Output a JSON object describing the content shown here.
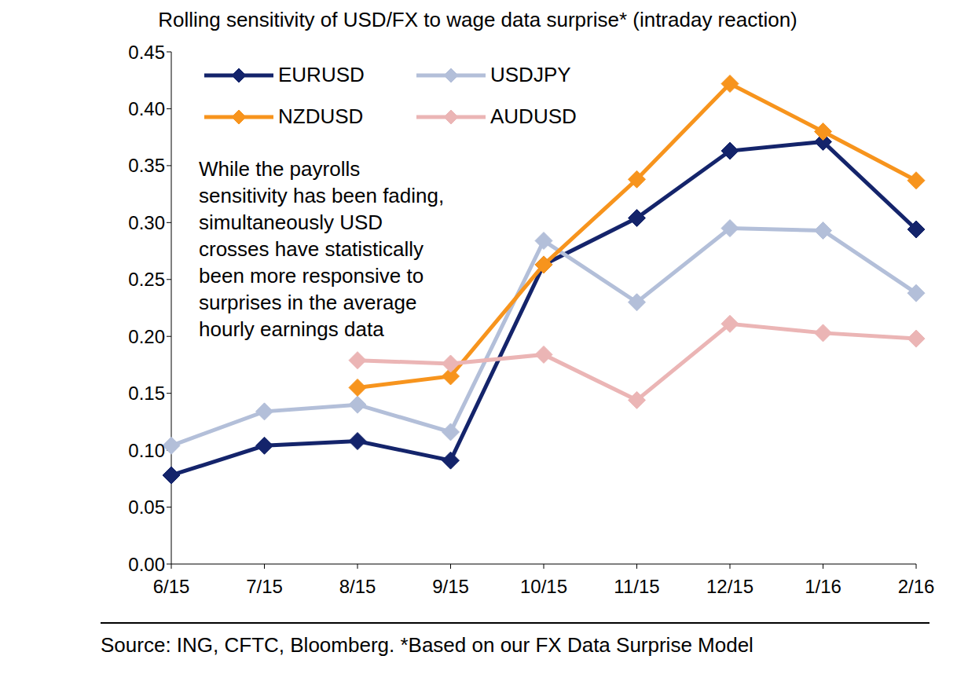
{
  "chart_data": {
    "type": "line",
    "title": "Rolling sensitivity of USD/FX to wage data surprise* (intraday reaction)",
    "annotation": [
      "While the payrolls",
      "sensitivity has been fading,",
      "simultaneously USD",
      "crosses have statistically",
      "been more responsive to",
      "surprises in the average",
      "hourly earnings data"
    ],
    "source": "Source: ING, CFTC, Bloomberg. *Based on our FX Data Surprise Model",
    "categories": [
      "6/15",
      "7/15",
      "8/15",
      "9/15",
      "10/15",
      "11/15",
      "12/15",
      "1/16",
      "2/16"
    ],
    "series": [
      {
        "name": "EURUSD",
        "color": "#14246b",
        "marker": "diamond",
        "values": [
          0.078,
          0.104,
          0.108,
          0.091,
          0.263,
          0.304,
          0.363,
          0.371,
          0.294
        ]
      },
      {
        "name": "USDJPY",
        "color": "#b3bfd9",
        "marker": "diamond",
        "values": [
          0.104,
          0.134,
          0.14,
          0.116,
          0.284,
          0.23,
          0.295,
          0.293,
          0.238
        ]
      },
      {
        "name": "NZDUSD",
        "color": "#f7941d",
        "marker": "diamond",
        "values": [
          null,
          null,
          0.155,
          0.165,
          0.263,
          0.338,
          0.422,
          0.38,
          0.337
        ]
      },
      {
        "name": "AUDUSD",
        "color": "#ebb5b5",
        "marker": "diamond",
        "values": [
          null,
          null,
          0.179,
          0.176,
          0.184,
          0.144,
          0.211,
          0.203,
          0.198
        ]
      }
    ],
    "ylim": [
      0,
      0.45
    ],
    "yticks": [
      {
        "value": 0,
        "label": "0.00"
      },
      {
        "value": 0.05,
        "label": "0.05"
      },
      {
        "value": 0.1,
        "label": "0.10"
      },
      {
        "value": 0.15,
        "label": "0.15"
      },
      {
        "value": 0.2,
        "label": "0.20"
      },
      {
        "value": 0.25,
        "label": "0.25"
      },
      {
        "value": 0.3,
        "label": "0.30"
      },
      {
        "value": 0.35,
        "label": "0.35"
      },
      {
        "value": 0.4,
        "label": "0.40"
      },
      {
        "value": 0.45,
        "label": "0.45"
      }
    ],
    "grid": false,
    "legend": "upper left"
  }
}
